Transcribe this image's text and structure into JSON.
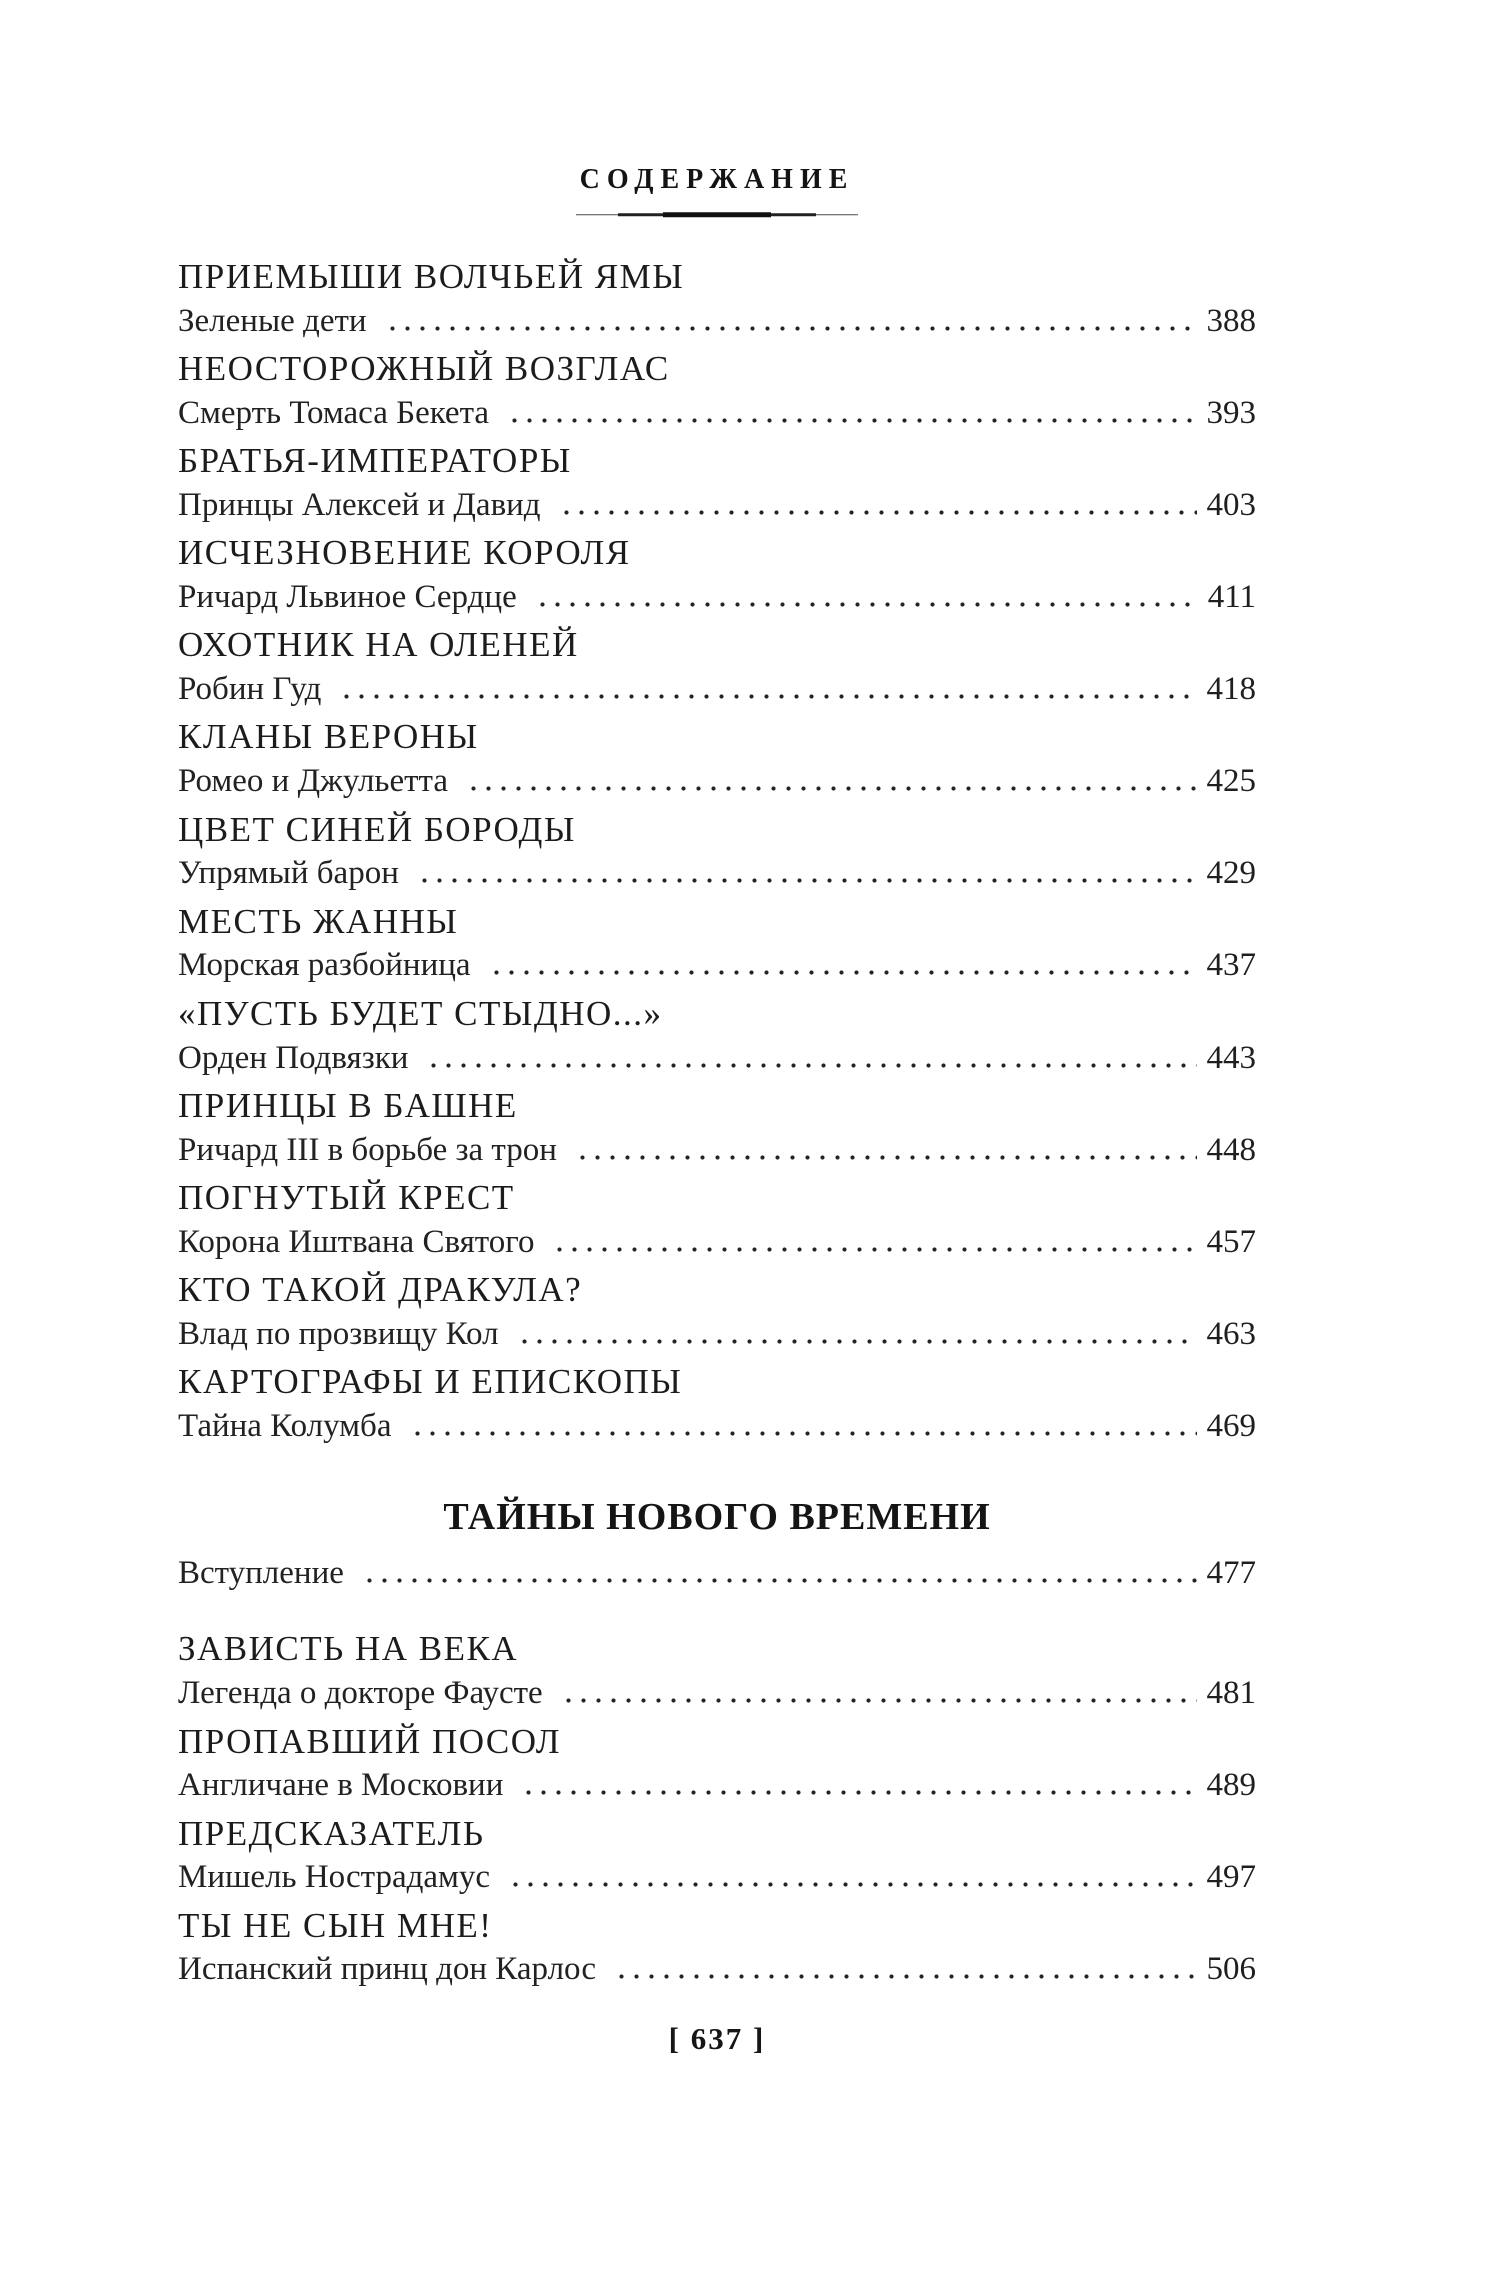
{
  "page": {
    "title": "СОДЕРЖАНИЕ",
    "footer_page_number": "[ 637 ]"
  },
  "colors": {
    "background": "#ffffff",
    "text": "#1e1c1a",
    "ornament_rule": "#1a1a1a"
  },
  "toc": {
    "medieval_entries": [
      {
        "title": "ПРИЕМЫШИ ВОЛЧЬЕЙ ЯМЫ",
        "subtitle": "Зеленые дети",
        "page": "388"
      },
      {
        "title": "НЕОСТОРОЖНЫЙ ВОЗГЛАС",
        "subtitle": "Смерть Томаса Бекета",
        "page": "393"
      },
      {
        "title": "БРАТЬЯ-ИМПЕРАТОРЫ",
        "subtitle": "Принцы Алексей и Давид",
        "page": "403"
      },
      {
        "title": "ИСЧЕЗНОВЕНИЕ КОРОЛЯ",
        "subtitle": "Ричард Львиное Сердце",
        "page": "411"
      },
      {
        "title": "ОХОТНИК НА ОЛЕНЕЙ",
        "subtitle": "Робин Гуд",
        "page": "418"
      },
      {
        "title": "КЛАНЫ ВЕРОНЫ",
        "subtitle": "Ромео и Джульетта",
        "page": "425"
      },
      {
        "title": "ЦВЕТ СИНЕЙ БОРОДЫ",
        "subtitle": "Упрямый барон",
        "page": "429"
      },
      {
        "title": "МЕСТЬ ЖАННЫ",
        "subtitle": "Морская разбойница",
        "page": "437"
      },
      {
        "title": "«ПУСТЬ БУДЕТ СТЫДНО...»",
        "subtitle": "Орден Подвязки",
        "page": "443"
      },
      {
        "title": "ПРИНЦЫ В БАШНЕ",
        "subtitle": "Ричард III в борьбе за трон",
        "page": "448"
      },
      {
        "title": "ПОГНУТЫЙ КРЕСТ",
        "subtitle": "Корона Иштвана Святого",
        "page": "457"
      },
      {
        "title": "КТО ТАКОЙ ДРАКУЛА?",
        "subtitle": "Влад по прозвищу Кол",
        "page": "463"
      },
      {
        "title": "КАРТОГРАФЫ И ЕПИСКОПЫ",
        "subtitle": "Тайна Колумба",
        "page": "469"
      }
    ],
    "section": {
      "heading": "ТАЙНЫ НОВОГО ВРЕМЕНИ",
      "intro": {
        "subtitle": "Вступление",
        "page": "477"
      }
    },
    "new_time_entries": [
      {
        "title": "ЗАВИСТЬ НА ВЕКА",
        "subtitle": "Легенда о докторе Фаусте",
        "page": "481"
      },
      {
        "title": "ПРОПАВШИЙ ПОСОЛ",
        "subtitle": "Англичане в Московии",
        "page": "489"
      },
      {
        "title": "ПРЕДСКАЗАТЕЛЬ",
        "subtitle": "Мишель Нострадамус",
        "page": "497"
      },
      {
        "title": "ТЫ НЕ СЫН МНЕ!",
        "subtitle": "Испанский принц дон Карлос",
        "page": "506"
      }
    ]
  }
}
